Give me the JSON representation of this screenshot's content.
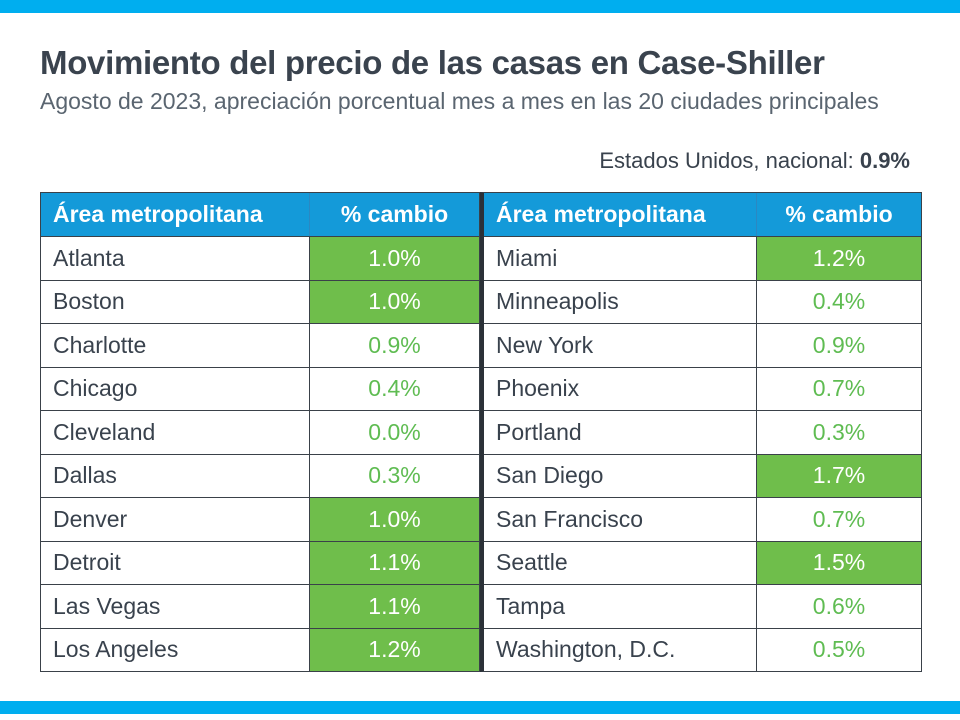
{
  "page": {
    "title": "Movimiento del precio de las casas en Case-Shiller",
    "subtitle": "Agosto de 2023, apreciación porcentual mes a mes en las 20 ciudades principales",
    "national_label": "Estados Unidos, nacional: ",
    "national_value": "0.9%"
  },
  "colors": {
    "accent_bar": "#00AEEF",
    "header_blue": "#149AD9",
    "green_fill": "#6FBE4B",
    "green_text": "#5FBC52",
    "row_stripe_blue": "#DAF0FB",
    "dark_text": "#39424D",
    "subtitle_gray": "#5A6570",
    "border_dark": "#3A4149"
  },
  "table": {
    "column_headers": [
      "Área metropolitana",
      "% cambio"
    ],
    "left_rows": [
      {
        "city": "Atlanta",
        "value": "1.0%",
        "highlight": "fill"
      },
      {
        "city": "Boston",
        "value": "1.0%",
        "highlight": "fill"
      },
      {
        "city": "Charlotte",
        "value": "0.9%",
        "highlight": "plain"
      },
      {
        "city": "Chicago",
        "value": "0.4%",
        "highlight": "plain"
      },
      {
        "city": "Cleveland",
        "value": "0.0%",
        "highlight": "plain"
      },
      {
        "city": "Dallas",
        "value": "0.3%",
        "highlight": "plain"
      },
      {
        "city": "Denver",
        "value": "1.0%",
        "highlight": "fill"
      },
      {
        "city": "Detroit",
        "value": "1.1%",
        "highlight": "fill"
      },
      {
        "city": "Las Vegas",
        "value": "1.1%",
        "highlight": "fill"
      },
      {
        "city": "Los Angeles",
        "value": "1.2%",
        "highlight": "fill"
      }
    ],
    "right_rows": [
      {
        "city": "Miami",
        "value": "1.2%",
        "highlight": "fill"
      },
      {
        "city": "Minneapolis",
        "value": "0.4%",
        "highlight": "plain"
      },
      {
        "city": "New York",
        "value": "0.9%",
        "highlight": "plain"
      },
      {
        "city": "Phoenix",
        "value": "0.7%",
        "highlight": "plain"
      },
      {
        "city": "Portland",
        "value": "0.3%",
        "highlight": "plain"
      },
      {
        "city": "San Diego",
        "value": "1.7%",
        "highlight": "fill"
      },
      {
        "city": "San Francisco",
        "value": "0.7%",
        "highlight": "plain"
      },
      {
        "city": "Seattle",
        "value": "1.5%",
        "highlight": "fill"
      },
      {
        "city": "Tampa",
        "value": "0.6%",
        "highlight": "plain"
      },
      {
        "city": "Washington, D.C.",
        "value": "0.5%",
        "highlight": "plain"
      }
    ]
  },
  "chart_data": {
    "type": "table",
    "title": "Movimiento del precio de las casas en Case-Shiller",
    "subtitle": "Agosto de 2023, apreciación porcentual mes a mes en las 20 ciudades principales",
    "national": {
      "label": "Estados Unidos, nacional:",
      "value": 0.9,
      "unit": "%"
    },
    "columns": [
      "Área metropolitana",
      "% cambio"
    ],
    "rows": [
      [
        "Atlanta",
        1.0
      ],
      [
        "Boston",
        1.0
      ],
      [
        "Charlotte",
        0.9
      ],
      [
        "Chicago",
        0.4
      ],
      [
        "Cleveland",
        0.0
      ],
      [
        "Dallas",
        0.3
      ],
      [
        "Denver",
        1.0
      ],
      [
        "Detroit",
        1.1
      ],
      [
        "Las Vegas",
        1.1
      ],
      [
        "Los Angeles",
        1.2
      ],
      [
        "Miami",
        1.2
      ],
      [
        "Minneapolis",
        0.4
      ],
      [
        "New York",
        0.9
      ],
      [
        "Phoenix",
        0.7
      ],
      [
        "Portland",
        0.3
      ],
      [
        "San Diego",
        1.7
      ],
      [
        "San Francisco",
        0.7
      ],
      [
        "Seattle",
        1.5
      ],
      [
        "Tampa",
        0.6
      ],
      [
        "Washington, D.C.",
        0.5
      ]
    ],
    "green_filled_cells": [
      "Atlanta",
      "Boston",
      "Denver",
      "Detroit",
      "Las Vegas",
      "Los Angeles",
      "Miami",
      "San Diego",
      "Seattle"
    ]
  }
}
